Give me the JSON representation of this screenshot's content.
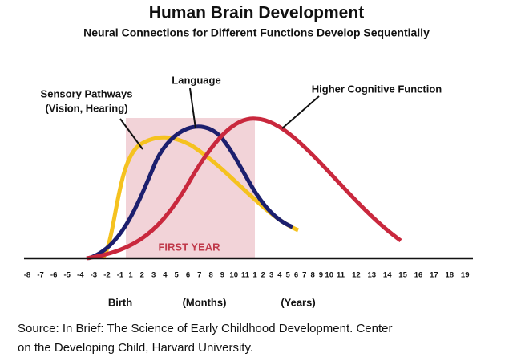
{
  "header": {
    "title": "Human Brain Development",
    "subtitle": "Neural Connections for Different Functions Develop Sequentially"
  },
  "curves": {
    "sensory": "Sensory Pathways",
    "sensory_sub": "(Vision, Hearing)",
    "language": "Language",
    "cognitive": "Higher Cognitive Function"
  },
  "first_year": "FIRST YEAR",
  "axis": {
    "prenatal": [
      "-8",
      "-7",
      "-6",
      "-5",
      "-4",
      "-3",
      "-2",
      "-1"
    ],
    "months": [
      "1",
      "2",
      "3",
      "4",
      "5",
      "6",
      "7",
      "8",
      "9",
      "10",
      "11"
    ],
    "years": [
      "1",
      "2",
      "3",
      "4",
      "5",
      "6",
      "7",
      "8",
      "9",
      "10",
      "11",
      "12",
      "13",
      "14",
      "15",
      "16",
      "17",
      "18",
      "19"
    ],
    "birth": "Birth",
    "months_label": "(Months)",
    "years_label": "(Years)"
  },
  "source": [
    "Source: In Brief: The Science of Early Childhood Development. Center",
    "on the Developing Child, Harvard University."
  ]
}
